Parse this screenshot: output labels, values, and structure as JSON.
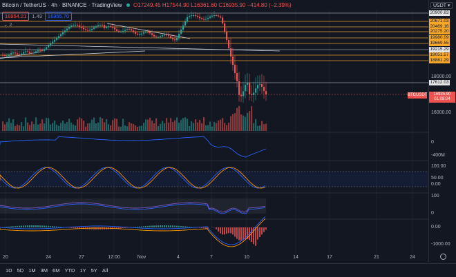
{
  "header": {
    "symbol": "Bitcoin / TetherUS · 4h · BINANCE · TradingView",
    "ohlc": "O17249.45 H17544.90 L16361.60 C16935.90 −414.80 (−2.39%)"
  },
  "controls": {
    "sell_price": "16954.21",
    "spread": "1.49",
    "buy_price": "16955.70"
  },
  "indicators": {
    "count_label": "2"
  },
  "currency": "USDT",
  "price_levels": [
    {
      "label": "20900.83",
      "type": "white"
    },
    {
      "label": "20671.03",
      "type": "yellow"
    },
    {
      "label": "20469.16",
      "type": "yellow"
    },
    {
      "label": "20275.20",
      "type": "yellow"
    },
    {
      "label": "19980.09",
      "type": "yellow"
    },
    {
      "label": "19669.55",
      "type": "yellow"
    },
    {
      "label": "19215.29",
      "type": "white"
    },
    {
      "label": "19051.57",
      "type": "yellow"
    },
    {
      "label": "18881.29",
      "type": "yellow"
    },
    {
      "label": "17612.03",
      "type": "white"
    }
  ],
  "axis_plain": {
    "p18000": "18000.00",
    "p16000": "16000.00"
  },
  "last_price": {
    "symbol": "BTCUSDT",
    "price": "16935.90",
    "countdown": "01:08:04"
  },
  "pane_labels": {
    "obv_zero": "0",
    "obv_neg": "-400M",
    "stoch_100": "100.00",
    "stoch_50": "50.00",
    "stoch_0": "0.00",
    "rsi_100": "100",
    "rsi_0": "0",
    "macd_zero": "0.00",
    "macd_neg": "-1000.00"
  },
  "x_labels": [
    "20",
    "24",
    "27",
    "12:00",
    "Nov",
    "4",
    "7",
    "10",
    "14",
    "17",
    "21",
    "24"
  ],
  "timeframes": [
    "1D",
    "5D",
    "1M",
    "3M",
    "6M",
    "YTD",
    "1Y",
    "5Y",
    "All"
  ],
  "colors": {
    "up": "#26a69a",
    "down": "#ef5350",
    "level": "#f9a825",
    "bg": "#131722"
  }
}
